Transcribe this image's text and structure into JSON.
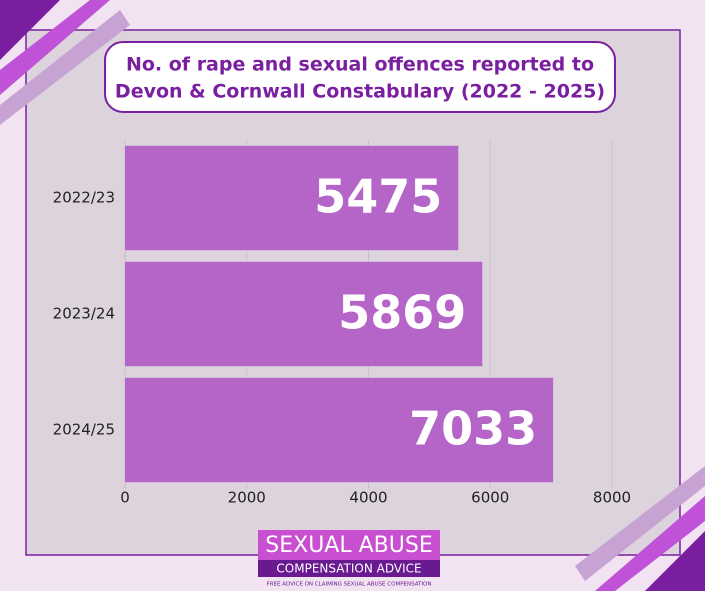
{
  "chart_data": {
    "type": "bar",
    "orientation": "horizontal",
    "title": [
      "No. of rape and sexual offences reported to",
      "Devon & Cornwall Constabulary (2022 - 2025)"
    ],
    "categories": [
      "2022/23",
      "2023/24",
      "2024/25"
    ],
    "values": [
      5475,
      5869,
      7033
    ],
    "color": "#b565c8",
    "xlim": [
      0,
      8000
    ],
    "xticks": [
      0,
      2000,
      4000,
      6000,
      8000
    ],
    "grid": true
  },
  "logo": {
    "line1": "SEXUAL ABUSE",
    "line2": "COMPENSATION ADVICE",
    "tagline": "FREE ADVICE ON CLAIMING SEXUAL ABUSE COMPENSATION"
  }
}
